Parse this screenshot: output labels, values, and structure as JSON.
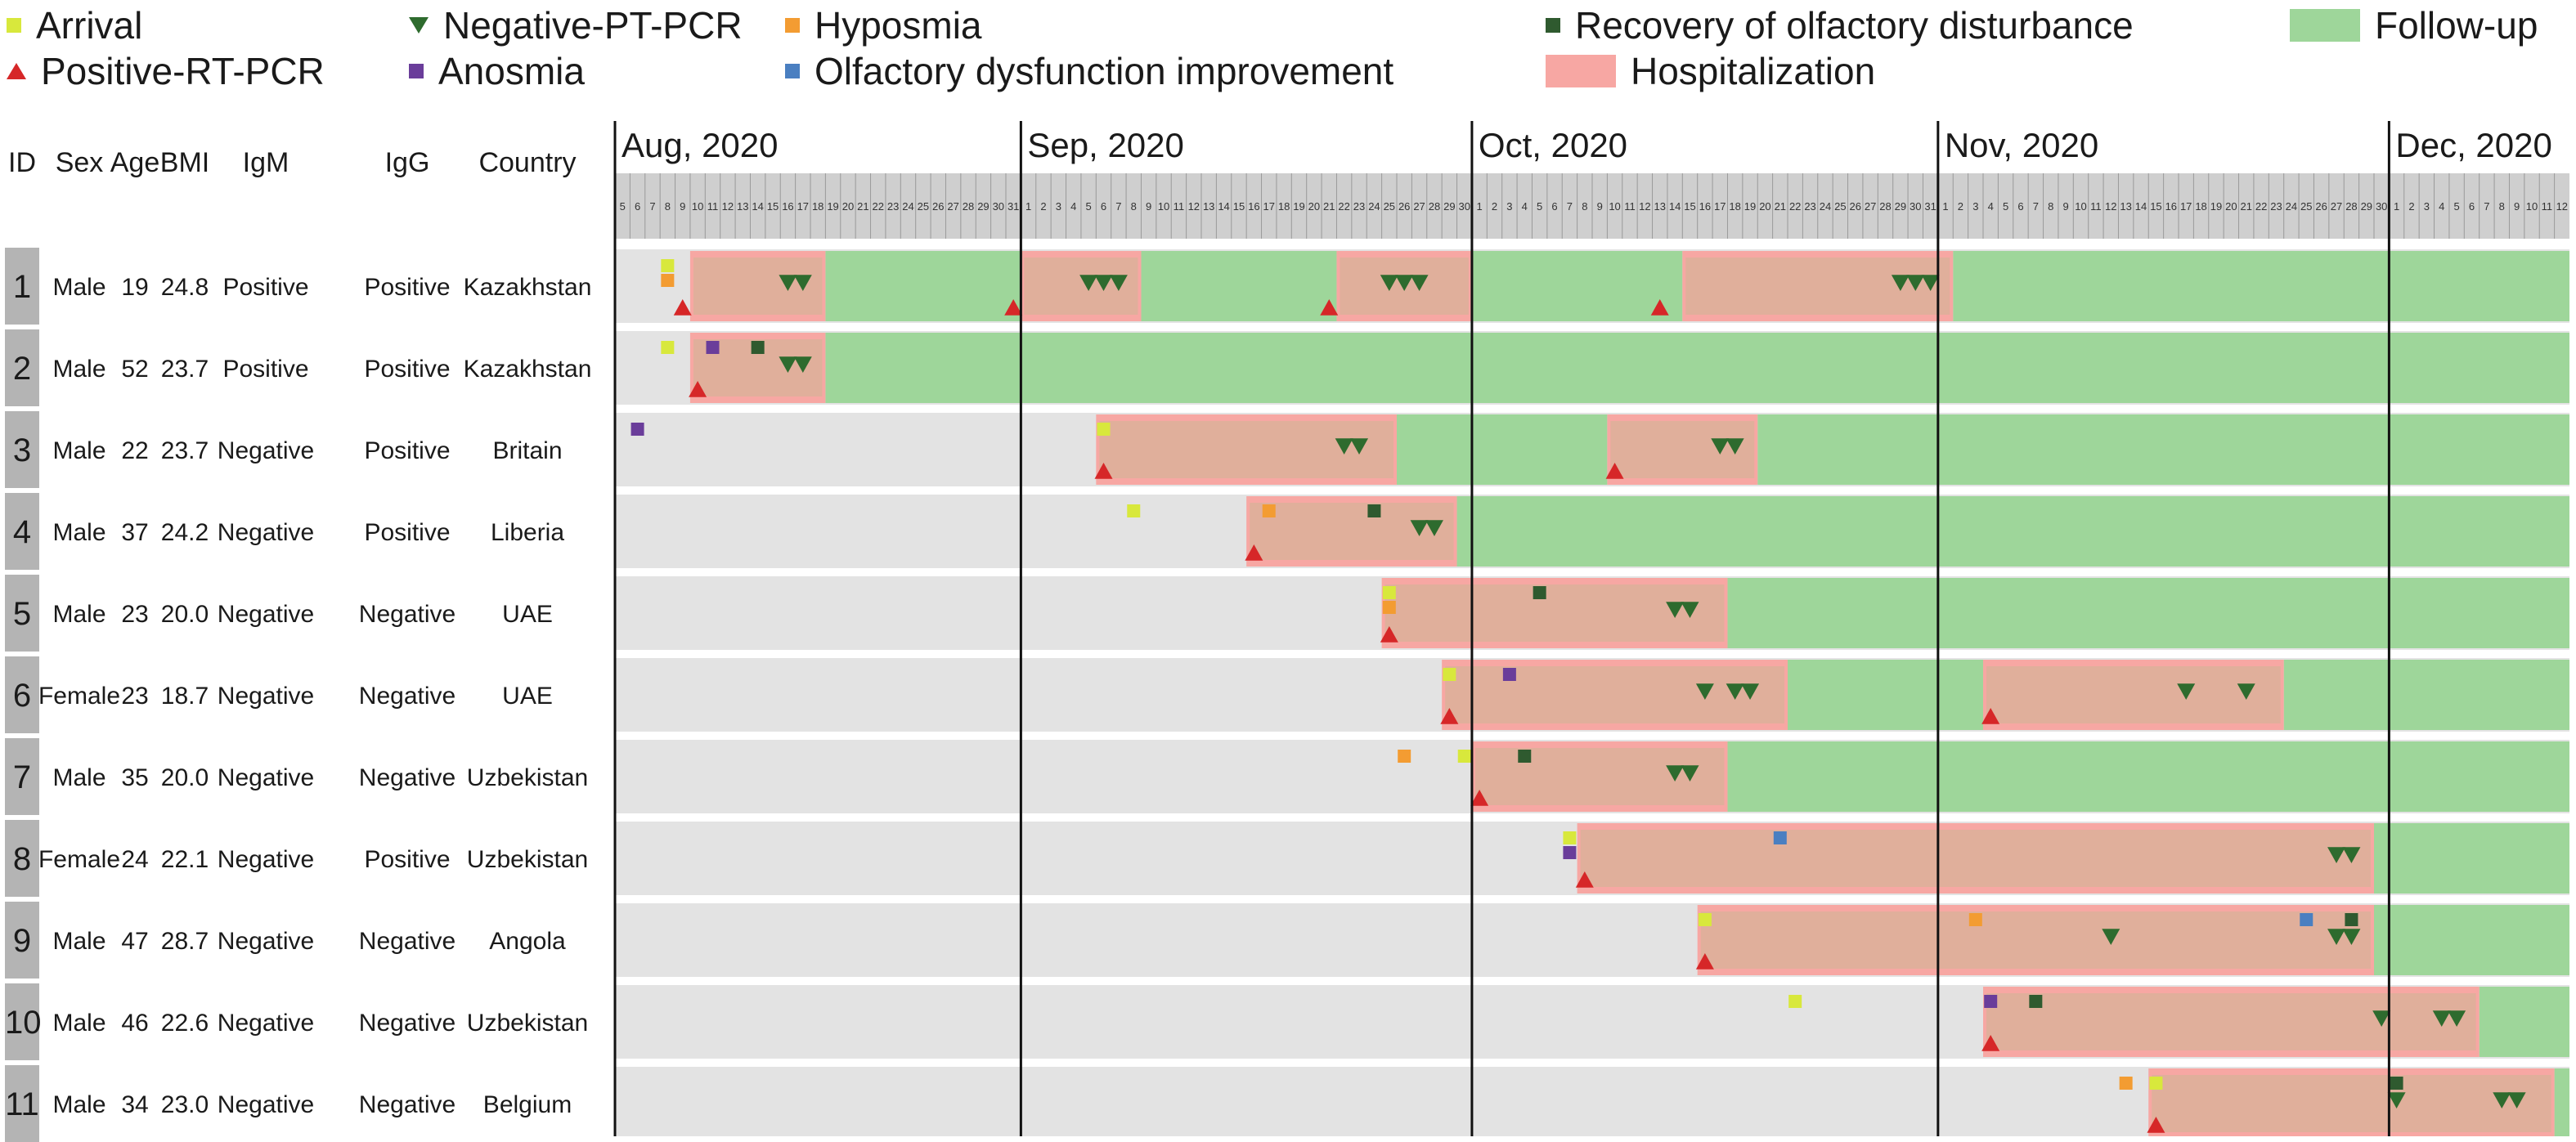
{
  "legend": [
    {
      "label": "Arrival",
      "symbol": "square",
      "color": "#d8e83c"
    },
    {
      "label": "Positive-RT-PCR",
      "symbol": "triangle-up",
      "color": "#d62728"
    },
    {
      "label": "Negative-PT-PCR",
      "symbol": "triangle-down",
      "color": "#2e6b2e"
    },
    {
      "label": "Anosmia",
      "symbol": "square",
      "color": "#6a3d9a"
    },
    {
      "label": "Hyposmia",
      "symbol": "square",
      "color": "#f39c32"
    },
    {
      "label": "Olfactory dysfunction improvement",
      "symbol": "square",
      "color": "#4a7fc1"
    },
    {
      "label": "Recovery of olfactory disturbance",
      "symbol": "square",
      "color": "#2f5a2f"
    },
    {
      "label": "Hospitalization",
      "symbol": "bar",
      "color": "#f7a7a3"
    },
    {
      "label": "Follow-up",
      "symbol": "bar",
      "color": "#9ed69a"
    }
  ],
  "table": {
    "headers": [
      "ID",
      "Sex",
      "Age",
      "BMI",
      "IgM",
      "IgG",
      "Country"
    ],
    "rows": [
      {
        "id": "1",
        "sex": "Male",
        "age": "19",
        "bmi": "24.8",
        "igm": "Positive",
        "igg": "Positive",
        "country": "Kazakhstan"
      },
      {
        "id": "2",
        "sex": "Male",
        "age": "52",
        "bmi": "23.7",
        "igm": "Positive",
        "igg": "Positive",
        "country": "Kazakhstan"
      },
      {
        "id": "3",
        "sex": "Male",
        "age": "22",
        "bmi": "23.7",
        "igm": "Negative",
        "igg": "Positive",
        "country": "Britain"
      },
      {
        "id": "4",
        "sex": "Male",
        "age": "37",
        "bmi": "24.2",
        "igm": "Negative",
        "igg": "Positive",
        "country": "Liberia"
      },
      {
        "id": "5",
        "sex": "Male",
        "age": "23",
        "bmi": "20.0",
        "igm": "Negative",
        "igg": "Negative",
        "country": "UAE"
      },
      {
        "id": "6",
        "sex": "Female",
        "age": "23",
        "bmi": "18.7",
        "igm": "Negative",
        "igg": "Negative",
        "country": "UAE"
      },
      {
        "id": "7",
        "sex": "Male",
        "age": "35",
        "bmi": "20.0",
        "igm": "Negative",
        "igg": "Negative",
        "country": "Uzbekistan"
      },
      {
        "id": "8",
        "sex": "Female",
        "age": "24",
        "bmi": "22.1",
        "igm": "Negative",
        "igg": "Positive",
        "country": "Uzbekistan"
      },
      {
        "id": "9",
        "sex": "Male",
        "age": "47",
        "bmi": "28.7",
        "igm": "Negative",
        "igg": "Negative",
        "country": "Angola"
      },
      {
        "id": "10",
        "sex": "Male",
        "age": "46",
        "bmi": "22.6",
        "igm": "Negative",
        "igg": "Negative",
        "country": "Uzbekistan"
      },
      {
        "id": "11",
        "sex": "Male",
        "age": "34",
        "bmi": "23.0",
        "igm": "Negative",
        "igg": "Negative",
        "country": "Belgium"
      }
    ]
  },
  "chart_data": {
    "type": "timeline",
    "title": "",
    "x_axis": {
      "start": "2020-08-05",
      "end": "2020-12-12"
    },
    "months": [
      {
        "label": "Aug, 2020",
        "start": "2020-08-01"
      },
      {
        "label": "Sep, 2020",
        "start": "2020-09-01"
      },
      {
        "label": "Oct, 2020",
        "start": "2020-10-01"
      },
      {
        "label": "Nov, 2020",
        "start": "2020-11-01"
      },
      {
        "label": "Dec, 2020",
        "start": "2020-12-01"
      }
    ],
    "series": [
      {
        "id": "1",
        "hospitalization": [
          [
            "2020-08-10",
            "2020-08-18"
          ],
          [
            "2020-09-01",
            "2020-09-08"
          ],
          [
            "2020-09-22",
            "2020-09-30"
          ],
          [
            "2020-10-15",
            "2020-11-01"
          ]
        ],
        "follow_up": [
          [
            "2020-08-19",
            "2020-08-31"
          ],
          [
            "2020-09-09",
            "2020-09-21"
          ],
          [
            "2020-10-01",
            "2020-10-14"
          ],
          [
            "2020-11-02",
            "2020-12-12"
          ]
        ],
        "events": [
          {
            "type": "arrival",
            "date": "2020-08-08"
          },
          {
            "type": "hyposmia",
            "date": "2020-08-08"
          },
          {
            "type": "positive-rt-pcr",
            "date": "2020-08-09"
          },
          {
            "type": "negative-rt-pcr",
            "date": "2020-08-16"
          },
          {
            "type": "negative-rt-pcr",
            "date": "2020-08-17"
          },
          {
            "type": "positive-rt-pcr",
            "date": "2020-08-31"
          },
          {
            "type": "negative-rt-pcr",
            "date": "2020-09-05"
          },
          {
            "type": "negative-rt-pcr",
            "date": "2020-09-06"
          },
          {
            "type": "negative-rt-pcr",
            "date": "2020-09-07"
          },
          {
            "type": "positive-rt-pcr",
            "date": "2020-09-21"
          },
          {
            "type": "negative-rt-pcr",
            "date": "2020-09-25"
          },
          {
            "type": "negative-rt-pcr",
            "date": "2020-09-26"
          },
          {
            "type": "negative-rt-pcr",
            "date": "2020-09-27"
          },
          {
            "type": "positive-rt-pcr",
            "date": "2020-10-13"
          },
          {
            "type": "negative-rt-pcr",
            "date": "2020-10-29"
          },
          {
            "type": "negative-rt-pcr",
            "date": "2020-10-30"
          },
          {
            "type": "negative-rt-pcr",
            "date": "2020-10-31"
          }
        ]
      },
      {
        "id": "2",
        "hospitalization": [
          [
            "2020-08-10",
            "2020-08-18"
          ]
        ],
        "follow_up": [
          [
            "2020-08-19",
            "2020-12-12"
          ]
        ],
        "events": [
          {
            "type": "arrival",
            "date": "2020-08-08"
          },
          {
            "type": "positive-rt-pcr",
            "date": "2020-08-10"
          },
          {
            "type": "anosmia",
            "date": "2020-08-11"
          },
          {
            "type": "recovery",
            "date": "2020-08-14"
          },
          {
            "type": "negative-rt-pcr",
            "date": "2020-08-16"
          },
          {
            "type": "negative-rt-pcr",
            "date": "2020-08-17"
          }
        ]
      },
      {
        "id": "3",
        "hospitalization": [
          [
            "2020-09-06",
            "2020-09-25"
          ],
          [
            "2020-10-10",
            "2020-10-19"
          ]
        ],
        "follow_up": [
          [
            "2020-09-26",
            "2020-10-09"
          ],
          [
            "2020-10-20",
            "2020-12-12"
          ]
        ],
        "events": [
          {
            "type": "anosmia",
            "date": "2020-08-06"
          },
          {
            "type": "arrival",
            "date": "2020-09-06"
          },
          {
            "type": "positive-rt-pcr",
            "date": "2020-09-06"
          },
          {
            "type": "negative-rt-pcr",
            "date": "2020-09-22"
          },
          {
            "type": "negative-rt-pcr",
            "date": "2020-09-23"
          },
          {
            "type": "positive-rt-pcr",
            "date": "2020-10-10"
          },
          {
            "type": "negative-rt-pcr",
            "date": "2020-10-17"
          },
          {
            "type": "negative-rt-pcr",
            "date": "2020-10-18"
          }
        ]
      },
      {
        "id": "4",
        "hospitalization": [
          [
            "2020-09-16",
            "2020-09-29"
          ]
        ],
        "follow_up": [
          [
            "2020-09-30",
            "2020-12-12"
          ]
        ],
        "events": [
          {
            "type": "arrival",
            "date": "2020-09-08"
          },
          {
            "type": "positive-rt-pcr",
            "date": "2020-09-16"
          },
          {
            "type": "hyposmia",
            "date": "2020-09-17"
          },
          {
            "type": "recovery",
            "date": "2020-09-24"
          },
          {
            "type": "negative-rt-pcr",
            "date": "2020-09-27"
          },
          {
            "type": "negative-rt-pcr",
            "date": "2020-09-28"
          }
        ]
      },
      {
        "id": "5",
        "hospitalization": [
          [
            "2020-09-25",
            "2020-10-17"
          ]
        ],
        "follow_up": [
          [
            "2020-10-18",
            "2020-12-12"
          ]
        ],
        "events": [
          {
            "type": "arrival",
            "date": "2020-09-25"
          },
          {
            "type": "hyposmia",
            "date": "2020-09-25"
          },
          {
            "type": "positive-rt-pcr",
            "date": "2020-09-25"
          },
          {
            "type": "recovery",
            "date": "2020-10-05"
          },
          {
            "type": "negative-rt-pcr",
            "date": "2020-10-14"
          },
          {
            "type": "negative-rt-pcr",
            "date": "2020-10-15"
          }
        ]
      },
      {
        "id": "6",
        "hospitalization": [
          [
            "2020-09-29",
            "2020-10-21"
          ],
          [
            "2020-11-04",
            "2020-11-23"
          ]
        ],
        "follow_up": [
          [
            "2020-10-22",
            "2020-11-03"
          ],
          [
            "2020-11-24",
            "2020-12-12"
          ]
        ],
        "events": [
          {
            "type": "arrival",
            "date": "2020-09-29"
          },
          {
            "type": "positive-rt-pcr",
            "date": "2020-09-29"
          },
          {
            "type": "anosmia",
            "date": "2020-10-03"
          },
          {
            "type": "negative-rt-pcr",
            "date": "2020-10-16"
          },
          {
            "type": "negative-rt-pcr",
            "date": "2020-10-18"
          },
          {
            "type": "negative-rt-pcr",
            "date": "2020-10-19"
          },
          {
            "type": "positive-rt-pcr",
            "date": "2020-11-04"
          },
          {
            "type": "negative-rt-pcr",
            "date": "2020-11-17"
          },
          {
            "type": "negative-rt-pcr",
            "date": "2020-11-21"
          }
        ]
      },
      {
        "id": "7",
        "hospitalization": [
          [
            "2020-10-01",
            "2020-10-17"
          ]
        ],
        "follow_up": [
          [
            "2020-10-18",
            "2020-12-12"
          ]
        ],
        "events": [
          {
            "type": "hyposmia",
            "date": "2020-09-26"
          },
          {
            "type": "arrival",
            "date": "2020-09-30"
          },
          {
            "type": "positive-rt-pcr",
            "date": "2020-10-01"
          },
          {
            "type": "recovery",
            "date": "2020-10-04"
          },
          {
            "type": "negative-rt-pcr",
            "date": "2020-10-14"
          },
          {
            "type": "negative-rt-pcr",
            "date": "2020-10-15"
          }
        ]
      },
      {
        "id": "8",
        "hospitalization": [
          [
            "2020-10-08",
            "2020-11-29"
          ]
        ],
        "follow_up": [
          [
            "2020-11-30",
            "2020-12-12"
          ]
        ],
        "events": [
          {
            "type": "arrival",
            "date": "2020-10-07"
          },
          {
            "type": "anosmia",
            "date": "2020-10-07"
          },
          {
            "type": "positive-rt-pcr",
            "date": "2020-10-08"
          },
          {
            "type": "olfactory-improvement",
            "date": "2020-10-21"
          },
          {
            "type": "negative-rt-pcr",
            "date": "2020-11-27"
          },
          {
            "type": "negative-rt-pcr",
            "date": "2020-11-28"
          }
        ]
      },
      {
        "id": "9",
        "hospitalization": [
          [
            "2020-10-16",
            "2020-11-29"
          ]
        ],
        "follow_up": [
          [
            "2020-11-30",
            "2020-12-12"
          ]
        ],
        "events": [
          {
            "type": "arrival",
            "date": "2020-10-16"
          },
          {
            "type": "positive-rt-pcr",
            "date": "2020-10-16"
          },
          {
            "type": "hyposmia",
            "date": "2020-11-03"
          },
          {
            "type": "negative-rt-pcr",
            "date": "2020-11-12"
          },
          {
            "type": "olfactory-improvement",
            "date": "2020-11-25"
          },
          {
            "type": "negative-rt-pcr",
            "date": "2020-11-27"
          },
          {
            "type": "negative-rt-pcr",
            "date": "2020-11-28"
          },
          {
            "type": "recovery",
            "date": "2020-11-28"
          }
        ]
      },
      {
        "id": "10",
        "hospitalization": [
          [
            "2020-11-04",
            "2020-12-06"
          ]
        ],
        "follow_up": [
          [
            "2020-12-07",
            "2020-12-12"
          ]
        ],
        "events": [
          {
            "type": "arrival",
            "date": "2020-10-22"
          },
          {
            "type": "anosmia",
            "date": "2020-11-04"
          },
          {
            "type": "positive-rt-pcr",
            "date": "2020-11-04"
          },
          {
            "type": "recovery",
            "date": "2020-11-07"
          },
          {
            "type": "negative-rt-pcr",
            "date": "2020-11-30"
          },
          {
            "type": "negative-rt-pcr",
            "date": "2020-12-04"
          },
          {
            "type": "negative-rt-pcr",
            "date": "2020-12-05"
          }
        ]
      },
      {
        "id": "11",
        "hospitalization": [
          [
            "2020-11-15",
            "2020-12-11"
          ]
        ],
        "follow_up": [
          [
            "2020-12-12",
            "2020-12-12"
          ]
        ],
        "events": [
          {
            "type": "hyposmia",
            "date": "2020-11-13"
          },
          {
            "type": "arrival",
            "date": "2020-11-15"
          },
          {
            "type": "positive-rt-pcr",
            "date": "2020-11-15"
          },
          {
            "type": "recovery",
            "date": "2020-12-01"
          },
          {
            "type": "negative-rt-pcr",
            "date": "2020-12-01"
          },
          {
            "type": "negative-rt-pcr",
            "date": "2020-12-08"
          },
          {
            "type": "negative-rt-pcr",
            "date": "2020-12-09"
          }
        ]
      }
    ]
  }
}
